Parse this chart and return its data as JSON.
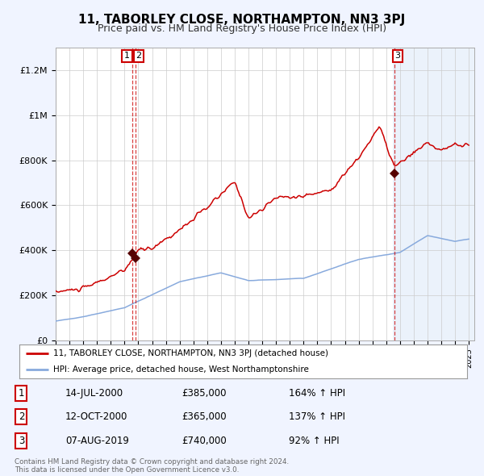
{
  "title": "11, TABORLEY CLOSE, NORTHAMPTON, NN3 3PJ",
  "subtitle": "Price paid vs. HM Land Registry's House Price Index (HPI)",
  "title_fontsize": 11,
  "subtitle_fontsize": 9,
  "bg_color": "#f0f4ff",
  "plot_bg_color": "#ffffff",
  "red_line_color": "#cc0000",
  "blue_line_color": "#88aadd",
  "marker_color": "#550000",
  "dashed_color": "#cc0000",
  "ylim": [
    0,
    1300000
  ],
  "yticks": [
    0,
    200000,
    400000,
    600000,
    800000,
    1000000,
    1200000
  ],
  "sale1_date": 2000.54,
  "sale1_price": 385000,
  "sale1_label": "1",
  "sale2_date": 2000.79,
  "sale2_price": 365000,
  "sale2_label": "2",
  "sale3_date": 2019.59,
  "sale3_price": 740000,
  "sale3_label": "3",
  "legend_line1": "11, TABORLEY CLOSE, NORTHAMPTON, NN3 3PJ (detached house)",
  "legend_line2": "HPI: Average price, detached house, West Northamptonshire",
  "table_data": [
    [
      "1",
      "14-JUL-2000",
      "£385,000",
      "164% ↑ HPI"
    ],
    [
      "2",
      "12-OCT-2000",
      "£365,000",
      "137% ↑ HPI"
    ],
    [
      "3",
      "07-AUG-2019",
      "£740,000",
      "92% ↑ HPI"
    ]
  ],
  "footer": "Contains HM Land Registry data © Crown copyright and database right 2024.\nThis data is licensed under the Open Government Licence v3.0."
}
